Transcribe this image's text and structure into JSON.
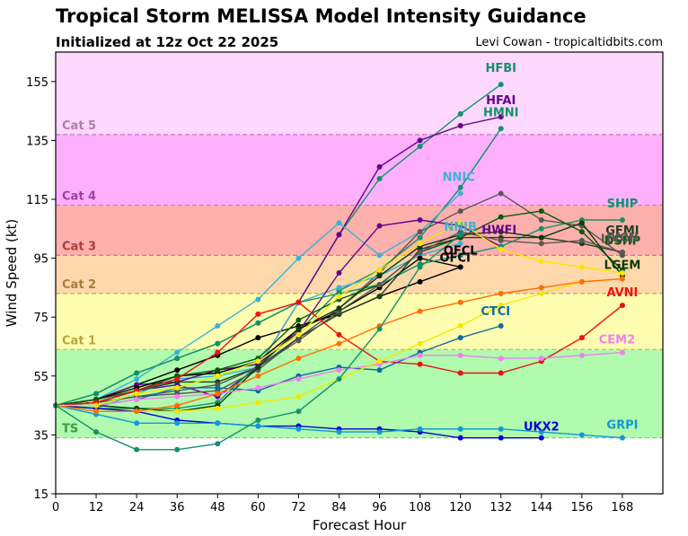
{
  "header": {
    "title": "Tropical Storm MELISSA Model Intensity Guidance",
    "subtitle": "Initialized at 12z Oct 22 2025",
    "credit": "Levi Cowan - tropicaltidbits.com"
  },
  "chart_data": {
    "type": "line",
    "title": "Tropical Storm MELISSA Model Intensity Guidance",
    "subtitle": "Initialized at 12z Oct 22 2025",
    "xlabel": "Forecast Hour",
    "ylabel": "Wind Speed (kt)",
    "xlim": [
      0,
      180
    ],
    "ylim": [
      15,
      165
    ],
    "xticks": [
      0,
      12,
      24,
      36,
      48,
      60,
      72,
      84,
      96,
      108,
      120,
      132,
      144,
      156,
      168
    ],
    "yticks": [
      15,
      35,
      55,
      75,
      95,
      115,
      135,
      155
    ],
    "bands": [
      {
        "label": "TS",
        "min": 34,
        "max": 64,
        "fill": "#b0fbae",
        "line": "#8fbf6f",
        "text": "#3a9a46"
      },
      {
        "label": "Cat 1",
        "min": 64,
        "max": 83,
        "fill": "#fffeb0",
        "line": "#c3b86c",
        "text": "#b5a73d"
      },
      {
        "label": "Cat 2",
        "min": 83,
        "max": 96,
        "fill": "#fed8ab",
        "line": "#c39a6b",
        "text": "#a87b3c"
      },
      {
        "label": "Cat 3",
        "min": 96,
        "max": 113,
        "fill": "#feb0ac",
        "line": "#c5716d",
        "text": "#b03a38"
      },
      {
        "label": "Cat 4",
        "min": 113,
        "max": 137,
        "fill": "#feb0fe",
        "line": "#c27bc1",
        "text": "#a43ea4"
      },
      {
        "label": "Cat 5",
        "min": 137,
        "max": 165,
        "fill": "#fed8fe",
        "line": "#c27bc1",
        "text": "#b07cb0"
      }
    ],
    "series": [
      {
        "name": "HFBI",
        "color": "#12916a",
        "x": [
          0,
          12,
          24,
          36,
          48,
          60,
          72,
          84,
          96,
          108,
          120,
          132
        ],
        "y": [
          45,
          49,
          56,
          61,
          66,
          73,
          80,
          103,
          122,
          133,
          144,
          154
        ]
      },
      {
        "name": "HFAI",
        "color": "#64048c",
        "x": [
          0,
          12,
          24,
          36,
          48,
          60,
          72,
          84,
          96,
          108,
          120,
          132
        ],
        "y": [
          45,
          46,
          50,
          52,
          48,
          58,
          80,
          103,
          126,
          135,
          140,
          143
        ]
      },
      {
        "name": "HMNI",
        "color": "#12916a",
        "x": [
          0,
          12,
          24,
          36,
          48,
          60,
          72,
          84,
          96,
          108,
          120,
          132
        ],
        "y": [
          45,
          44,
          44,
          44,
          46,
          59,
          70,
          84,
          91,
          102,
          119,
          139
        ]
      },
      {
        "name": "NNIC",
        "color": "#3cb1d5",
        "x": [
          0,
          12,
          24,
          36,
          48,
          60,
          72,
          84,
          96,
          108,
          120
        ],
        "y": [
          45,
          47,
          54,
          63,
          72,
          81,
          95,
          107,
          96,
          104,
          117
        ]
      },
      {
        "name": "ICON",
        "color": "#585858",
        "x": [
          0,
          12,
          24,
          36,
          48,
          60,
          72,
          84,
          96,
          108,
          120,
          132,
          144,
          156,
          168
        ],
        "y": [
          45,
          46,
          48,
          49,
          50,
          57,
          68,
          78,
          90,
          104,
          111,
          117,
          108,
          106,
          96
        ]
      },
      {
        "name": "OFCL",
        "color": "#000000",
        "x": [
          0,
          12,
          24,
          36,
          48,
          60,
          72,
          84,
          96,
          108,
          120
        ],
        "y": [
          45,
          47,
          52,
          57,
          62,
          68,
          72,
          76,
          82,
          87,
          92
        ]
      },
      {
        "name": "NNIB",
        "color": "#3cb1d5",
        "x": [
          0,
          12,
          24,
          36,
          48,
          60,
          72,
          84,
          96,
          108,
          120
        ],
        "y": [
          45,
          44,
          49,
          54,
          55,
          58,
          80,
          85,
          89,
          96,
          100
        ]
      },
      {
        "name": "HWFI",
        "color": "#64048c",
        "x": [
          0,
          12,
          24,
          36,
          48,
          60,
          72,
          84,
          96,
          108,
          120,
          132
        ],
        "y": [
          45,
          47,
          52,
          53,
          57,
          59,
          70,
          90,
          106,
          108,
          106,
          99
        ]
      },
      {
        "name": "OFCI",
        "color": "#000000",
        "x": [
          0,
          12,
          24,
          36,
          48,
          60,
          72,
          84,
          96,
          108,
          120
        ],
        "y": [
          45,
          47,
          51,
          55,
          56,
          60,
          71,
          77,
          85,
          95,
          92
        ]
      },
      {
        "name": "SHIP",
        "color": "#12916a",
        "x": [
          0,
          12,
          24,
          36,
          48,
          60,
          72,
          84,
          96,
          108,
          120,
          132,
          144,
          156,
          168
        ],
        "y": [
          45,
          49,
          56,
          61,
          66,
          73,
          80,
          83,
          86,
          93,
          96,
          99,
          105,
          108,
          108
        ]
      },
      {
        "name": "DSHP",
        "color": "#0b5a0b",
        "x": [
          0,
          12,
          24,
          36,
          48,
          60,
          72,
          84,
          96,
          108,
          120,
          132,
          144,
          156,
          168
        ],
        "y": [
          45,
          47,
          50,
          55,
          57,
          61,
          74,
          81,
          86,
          97,
          102,
          109,
          111,
          104,
          91
        ]
      },
      {
        "name": "GFMI",
        "color": "#1f3f1f",
        "x": [
          0,
          12,
          24,
          36,
          48,
          60,
          72,
          84,
          96,
          108,
          120,
          132,
          144,
          156,
          168
        ],
        "y": [
          45,
          46,
          50,
          53,
          53,
          58,
          68,
          76,
          82,
          98,
          102,
          102,
          102,
          100,
          97
        ]
      },
      {
        "name": "IVCN",
        "color": "#585858",
        "x": [
          0,
          12,
          24,
          36,
          48,
          60,
          72,
          84,
          96,
          108,
          120,
          132,
          144,
          156,
          168
        ],
        "y": [
          45,
          46,
          48,
          50,
          52,
          58,
          67,
          77,
          86,
          97,
          104,
          101,
          100,
          101,
          97
        ]
      },
      {
        "name": "LGEM",
        "color": "#0b3a0b",
        "x": [
          0,
          12,
          24,
          36,
          48,
          60,
          72,
          84,
          96,
          108,
          120,
          132,
          144,
          156,
          168
        ],
        "y": [
          45,
          45,
          44,
          43,
          45,
          58,
          71,
          78,
          89,
          99,
          103,
          104,
          102,
          107,
          89
        ]
      },
      {
        "name": "AVNI",
        "color": "#ee1111",
        "x": [
          0,
          12,
          24,
          36,
          48,
          60,
          72,
          84,
          96,
          108,
          120,
          132,
          144,
          156,
          168
        ],
        "y": [
          45,
          46,
          50,
          54,
          63,
          76,
          80,
          69,
          60,
          59,
          56,
          56,
          60,
          68,
          79
        ]
      },
      {
        "name": "CTCI",
        "color": "#0f6ba0",
        "x": [
          0,
          12,
          24,
          36,
          48,
          60,
          72,
          84,
          96,
          108,
          120,
          132
        ],
        "y": [
          45,
          45,
          47,
          51,
          51,
          50,
          55,
          58,
          57,
          63,
          68,
          72
        ]
      },
      {
        "name": "CEM2",
        "color": "#ee82ee",
        "x": [
          0,
          12,
          24,
          36,
          48,
          60,
          72,
          84,
          96,
          108,
          120,
          132,
          144,
          156,
          168
        ],
        "y": [
          45,
          45,
          47,
          48,
          49,
          51,
          54,
          57,
          59,
          62,
          62,
          61,
          61,
          62,
          63
        ]
      },
      {
        "name": "UKX2",
        "color": "#0000dd",
        "x": [
          0,
          12,
          24,
          36,
          48,
          60,
          72,
          84,
          96,
          108,
          120,
          132,
          144
        ],
        "y": [
          45,
          44,
          43,
          40,
          39,
          38,
          38,
          37,
          37,
          36,
          34,
          34,
          34
        ]
      },
      {
        "name": "GRPI",
        "color": "#1198d8",
        "x": [
          0,
          12,
          24,
          36,
          48,
          60,
          72,
          84,
          96,
          108,
          120,
          132,
          144,
          156,
          168
        ],
        "y": [
          45,
          42,
          39,
          39,
          39,
          38,
          37,
          36,
          36,
          37,
          37,
          37,
          36,
          35,
          34
        ]
      },
      {
        "name": "yellow-model",
        "color": "#f5e800",
        "x": [
          0,
          12,
          24,
          36,
          48,
          60,
          72,
          84,
          96,
          108,
          120,
          132,
          144,
          156,
          168
        ],
        "y": [
          45,
          43,
          43,
          43,
          44,
          46,
          48,
          54,
          60,
          66,
          72,
          79,
          83,
          87,
          88
        ]
      },
      {
        "name": "yellow-model-2",
        "color": "#f5e800",
        "x": [
          0,
          12,
          24,
          36,
          48,
          60,
          72,
          84,
          96,
          108,
          120,
          132,
          144,
          156,
          168
        ],
        "y": [
          45,
          45,
          49,
          51,
          55,
          60,
          69,
          82,
          91,
          100,
          107,
          98,
          94,
          92,
          90
        ]
      },
      {
        "name": "orange-model",
        "color": "#ff6e00",
        "x": [
          0,
          12,
          24,
          36,
          48,
          60,
          72,
          84,
          96,
          108,
          120,
          132,
          144,
          156,
          168
        ],
        "y": [
          45,
          43,
          43,
          45,
          49,
          55,
          61,
          66,
          72,
          77,
          80,
          83,
          85,
          87,
          88
        ]
      },
      {
        "name": "green-low-model",
        "color": "#12916a",
        "x": [
          0,
          12,
          24,
          36,
          48,
          60,
          72,
          84,
          96,
          108,
          120
        ],
        "y": [
          45,
          36,
          30,
          30,
          32,
          40,
          43,
          54,
          71,
          92,
          103
        ]
      }
    ],
    "label_list": [
      "HFBI",
      "HFAI",
      "HMNI",
      "NNIC",
      "ICON",
      "OFCL",
      "NNIB",
      "HWFI",
      "OFCI",
      "SHIP",
      "DSHP",
      "GFMI",
      "IVCN",
      "LGEM",
      "AVNI",
      "CTCI",
      "CEM2",
      "UKX2",
      "GRPI"
    ],
    "grid": false,
    "legend": "none"
  }
}
